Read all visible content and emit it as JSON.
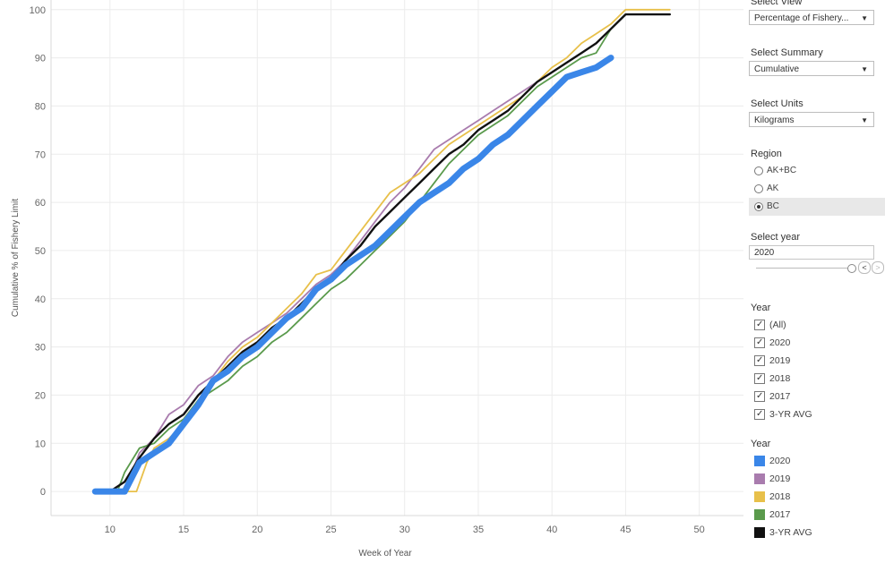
{
  "chart_data": {
    "type": "line",
    "xlabel": "Week of Year",
    "ylabel": "Cumulative % of Fishery Limit",
    "xlim": [
      6,
      53
    ],
    "ylim": [
      -5,
      102
    ],
    "xticks": [
      "10",
      "15",
      "20",
      "25",
      "30",
      "35",
      "40",
      "45",
      "50"
    ],
    "yticks": [
      "0",
      "10",
      "20",
      "30",
      "40",
      "50",
      "60",
      "70",
      "80",
      "90",
      "100"
    ],
    "grid": true,
    "series": [
      {
        "name": "2019",
        "color": "#a97cae",
        "values": [
          [
            10,
            0
          ],
          [
            11,
            0
          ],
          [
            12,
            8
          ],
          [
            13,
            11
          ],
          [
            14,
            16
          ],
          [
            15,
            18
          ],
          [
            16,
            22
          ],
          [
            17,
            24
          ],
          [
            18,
            28
          ],
          [
            19,
            31
          ],
          [
            20,
            33
          ],
          [
            21,
            35
          ],
          [
            22,
            37
          ],
          [
            23,
            40
          ],
          [
            24,
            43
          ],
          [
            25,
            45
          ],
          [
            26,
            48
          ],
          [
            27,
            52
          ],
          [
            28,
            56
          ],
          [
            29,
            60
          ],
          [
            30,
            63
          ],
          [
            31,
            67
          ],
          [
            32,
            71
          ],
          [
            33,
            73
          ],
          [
            34,
            75
          ],
          [
            35,
            77
          ],
          [
            36,
            79
          ],
          [
            37,
            81
          ],
          [
            38,
            83
          ],
          [
            39,
            85
          ],
          [
            40,
            87
          ],
          [
            41,
            89
          ],
          [
            42,
            91
          ],
          [
            43,
            93
          ],
          [
            44,
            96
          ],
          [
            45,
            99
          ],
          [
            46,
            99
          ],
          [
            47,
            99
          ],
          [
            48,
            99
          ]
        ]
      },
      {
        "name": "2018",
        "color": "#e8c04a",
        "values": [
          [
            11,
            0
          ],
          [
            11.8,
            0
          ],
          [
            12.5,
            6
          ],
          [
            13,
            9
          ],
          [
            14,
            11
          ],
          [
            15,
            14
          ],
          [
            16,
            18
          ],
          [
            17,
            23
          ],
          [
            18,
            27
          ],
          [
            19,
            30
          ],
          [
            20,
            32
          ],
          [
            21,
            35
          ],
          [
            22,
            38
          ],
          [
            23,
            41
          ],
          [
            24,
            45
          ],
          [
            25,
            46
          ],
          [
            26,
            50
          ],
          [
            27,
            54
          ],
          [
            28,
            58
          ],
          [
            29,
            62
          ],
          [
            30,
            64
          ],
          [
            31,
            66
          ],
          [
            32,
            69
          ],
          [
            33,
            72
          ],
          [
            34,
            74
          ],
          [
            35,
            76
          ],
          [
            36,
            78
          ],
          [
            37,
            80
          ],
          [
            38,
            82
          ],
          [
            39,
            85
          ],
          [
            40,
            88
          ],
          [
            41,
            90
          ],
          [
            42,
            93
          ],
          [
            43,
            95
          ],
          [
            44,
            97
          ],
          [
            45,
            100
          ],
          [
            46,
            100
          ],
          [
            47,
            100
          ],
          [
            48,
            100
          ]
        ]
      },
      {
        "name": "2017",
        "color": "#5a9a4c",
        "values": [
          [
            10,
            0
          ],
          [
            10.5,
            0
          ],
          [
            11,
            4
          ],
          [
            12,
            9
          ],
          [
            13,
            10
          ],
          [
            14,
            13
          ],
          [
            15,
            15
          ],
          [
            16,
            19
          ],
          [
            17,
            21
          ],
          [
            18,
            23
          ],
          [
            19,
            26
          ],
          [
            20,
            28
          ],
          [
            21,
            31
          ],
          [
            22,
            33
          ],
          [
            23,
            36
          ],
          [
            24,
            39
          ],
          [
            25,
            42
          ],
          [
            26,
            44
          ],
          [
            27,
            47
          ],
          [
            28,
            50
          ],
          [
            29,
            53
          ],
          [
            30,
            56
          ],
          [
            31,
            60
          ],
          [
            32,
            64
          ],
          [
            33,
            68
          ],
          [
            34,
            71
          ],
          [
            35,
            74
          ],
          [
            36,
            76
          ],
          [
            37,
            78
          ],
          [
            38,
            81
          ],
          [
            39,
            84
          ],
          [
            40,
            86
          ],
          [
            41,
            88
          ],
          [
            42,
            90
          ],
          [
            43,
            91
          ],
          [
            44,
            96
          ],
          [
            45,
            99
          ],
          [
            46,
            99
          ],
          [
            47,
            99
          ],
          [
            48,
            99
          ]
        ]
      },
      {
        "name": "3-YR AVG",
        "color": "#111111",
        "values": [
          [
            10,
            0
          ],
          [
            11,
            2
          ],
          [
            12,
            7
          ],
          [
            13,
            11
          ],
          [
            14,
            14
          ],
          [
            15,
            16
          ],
          [
            16,
            20
          ],
          [
            17,
            23
          ],
          [
            18,
            26
          ],
          [
            19,
            29
          ],
          [
            20,
            31
          ],
          [
            21,
            34
          ],
          [
            22,
            36
          ],
          [
            23,
            39
          ],
          [
            24,
            42
          ],
          [
            25,
            44
          ],
          [
            26,
            48
          ],
          [
            27,
            51
          ],
          [
            28,
            55
          ],
          [
            29,
            58
          ],
          [
            30,
            61
          ],
          [
            31,
            64
          ],
          [
            32,
            67
          ],
          [
            33,
            70
          ],
          [
            34,
            72
          ],
          [
            35,
            75
          ],
          [
            36,
            77
          ],
          [
            37,
            79
          ],
          [
            38,
            82
          ],
          [
            39,
            85
          ],
          [
            40,
            87
          ],
          [
            41,
            89
          ],
          [
            42,
            91
          ],
          [
            43,
            93
          ],
          [
            44,
            96
          ],
          [
            45,
            99
          ],
          [
            46,
            99
          ],
          [
            47,
            99
          ],
          [
            48,
            99
          ]
        ]
      },
      {
        "name": "2020",
        "color": "#3a86e8",
        "values": [
          [
            9,
            0
          ],
          [
            11,
            0
          ],
          [
            12,
            6
          ],
          [
            13,
            8
          ],
          [
            14,
            10
          ],
          [
            15,
            14
          ],
          [
            16,
            18
          ],
          [
            17,
            23
          ],
          [
            18,
            25
          ],
          [
            19,
            28
          ],
          [
            20,
            30
          ],
          [
            21,
            33
          ],
          [
            22,
            36
          ],
          [
            23,
            38
          ],
          [
            24,
            42
          ],
          [
            25,
            44
          ],
          [
            26,
            47
          ],
          [
            27,
            49
          ],
          [
            28,
            51
          ],
          [
            29,
            54
          ],
          [
            30,
            57
          ],
          [
            31,
            60
          ],
          [
            32,
            62
          ],
          [
            33,
            64
          ],
          [
            34,
            67
          ],
          [
            35,
            69
          ],
          [
            36,
            72
          ],
          [
            37,
            74
          ],
          [
            38,
            77
          ],
          [
            39,
            80
          ],
          [
            40,
            83
          ],
          [
            41,
            86
          ],
          [
            42,
            87
          ],
          [
            43,
            88
          ],
          [
            44,
            90
          ]
        ]
      }
    ]
  },
  "controls": {
    "select_view": {
      "title": "Select View",
      "value": "Percentage of Fishery..."
    },
    "select_summary": {
      "title": "Select Summary",
      "value": "Cumulative"
    },
    "select_units": {
      "title": "Select Units",
      "value": "Kilograms"
    },
    "region": {
      "title": "Region",
      "options": [
        "AK+BC",
        "AK",
        "BC"
      ],
      "selected": "BC"
    },
    "select_year": {
      "title": "Select year",
      "value": "2020",
      "prev": "<",
      "next": ">"
    },
    "year_filter": {
      "title": "Year",
      "items": [
        "(All)",
        "2020",
        "2019",
        "2018",
        "2017",
        "3-YR AVG"
      ]
    },
    "year_legend": {
      "title": "Year",
      "items": [
        {
          "label": "2020",
          "color": "#3a86e8"
        },
        {
          "label": "2019",
          "color": "#a97cae"
        },
        {
          "label": "2018",
          "color": "#e8c04a"
        },
        {
          "label": "2017",
          "color": "#5a9a4c"
        },
        {
          "label": "3-YR AVG",
          "color": "#111111"
        }
      ]
    }
  }
}
